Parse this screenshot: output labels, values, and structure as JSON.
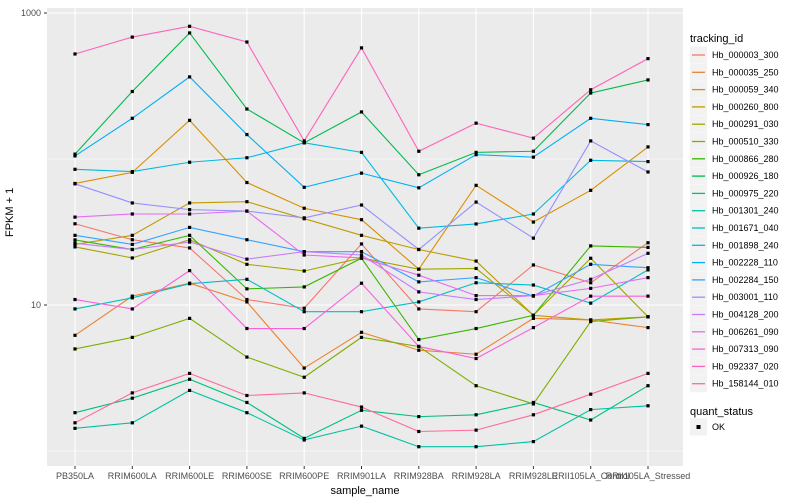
{
  "figure": {
    "y_title": "FPKM + 1",
    "x_title": "sample_name",
    "panel_bg": "#EBEBEB",
    "grid_color": "#FFFFFF",
    "tick_label_color": "#4D4D4D",
    "legend": {
      "tracking_title": "tracking_id",
      "quant_title": "quant_status",
      "quant_ok_label": "OK",
      "key_bg": "#F2F2F2",
      "point_color": "#000000"
    },
    "y_ticks": [
      {
        "label": "1000",
        "value": 1000
      },
      {
        "label": "10",
        "value": 10
      }
    ]
  },
  "chart_data": {
    "type": "line",
    "title": "",
    "xlabel": "sample_name",
    "ylabel": "FPKM + 1",
    "y_scale": "log10",
    "ylim": [
      0.8,
      1100
    ],
    "y_major_breaks": [
      10,
      1000
    ],
    "y_minor_breaks": [
      1,
      100
    ],
    "grid": true,
    "legend_position": "right",
    "point_shape": "black-square",
    "categories": [
      "PB350LA",
      "RRIM600LA",
      "RRIM600LE",
      "RRIM600SE",
      "RRIM600PE",
      "RRIM901LA",
      "RRIM928BA",
      "RRIM928LA",
      "RRIM928LE",
      "RRII105LA_Control",
      "RRII105LA_Stressed"
    ],
    "series": [
      {
        "name": "Hb_000003_300",
        "color": "#F8766D",
        "values": [
          36,
          28,
          24.6,
          10.9,
          9.5,
          26.2,
          9.4,
          9.0,
          18.8,
          14.2,
          26.7
        ]
      },
      {
        "name": "Hb_000035_250",
        "color": "#EA8331",
        "values": [
          6.2,
          11.5,
          14.1,
          10.5,
          3.7,
          6.5,
          4.9,
          4.6,
          8.1,
          7.9,
          7.0
        ]
      },
      {
        "name": "Hb_000059_340",
        "color": "#D89000",
        "values": [
          68,
          81,
          184,
          69,
          46,
          38.4,
          17.6,
          66,
          37,
          61,
          121
        ]
      },
      {
        "name": "Hb_000260_800",
        "color": "#C09B00",
        "values": [
          26,
          30,
          50,
          51,
          39,
          30,
          24,
          20,
          8.5,
          7.9,
          8.3
        ]
      },
      {
        "name": "Hb_000291_030",
        "color": "#A3A500",
        "values": [
          25,
          21,
          28,
          19,
          17.1,
          21,
          17.6,
          17.8,
          8.5,
          20.9,
          8.3
        ]
      },
      {
        "name": "Hb_000510_330",
        "color": "#7CAE00",
        "values": [
          5.0,
          6.0,
          8.1,
          4.4,
          3.2,
          6.0,
          5.2,
          2.8,
          2.1,
          7.7,
          8.3
        ]
      },
      {
        "name": "Hb_000866_280",
        "color": "#39B600",
        "values": [
          27.9,
          24,
          30,
          12.9,
          13.3,
          20.9,
          5.8,
          6.9,
          8.5,
          25.4,
          24.8
        ]
      },
      {
        "name": "Hb_000926_180",
        "color": "#00BB4E",
        "values": [
          108,
          290,
          730,
          220,
          129,
          210,
          78,
          111,
          113,
          283,
          348
        ]
      },
      {
        "name": "Hb_000975_220",
        "color": "#00BF7D",
        "values": [
          1.83,
          2.3,
          3.1,
          2.15,
          1.22,
          1.9,
          1.72,
          1.77,
          2.15,
          1.63,
          2.8
        ]
      },
      {
        "name": "Hb_001301_240",
        "color": "#00C1A3",
        "values": [
          1.43,
          1.56,
          2.6,
          1.83,
          1.19,
          1.48,
          1.07,
          1.07,
          1.16,
          1.92,
          2.04
        ]
      },
      {
        "name": "Hb_001671_040",
        "color": "#00BFC4",
        "values": [
          9.4,
          11.2,
          14,
          15,
          9.0,
          9.0,
          10.5,
          14.2,
          13.7,
          10.3,
          17.4
        ]
      },
      {
        "name": "Hb_001898_240",
        "color": "#00BAE0",
        "values": [
          85,
          82,
          95,
          102,
          129,
          111,
          33.6,
          35.9,
          42,
          98,
          96
        ]
      },
      {
        "name": "Hb_002228_110",
        "color": "#00B0F6",
        "values": [
          105,
          190,
          365,
          147,
          64,
          80,
          63.5,
          107,
          103,
          190,
          172
        ]
      },
      {
        "name": "Hb_002284_150",
        "color": "#35A2FF",
        "values": [
          30,
          26,
          34,
          28,
          23.2,
          23.2,
          14.4,
          15.4,
          11.5,
          19,
          18
        ]
      },
      {
        "name": "Hb_003001_110",
        "color": "#9590FF",
        "values": [
          67.6,
          50,
          45,
          44,
          39.5,
          48.4,
          24,
          50.7,
          28.7,
          133,
          81.5
        ]
      },
      {
        "name": "Hb_004128_200",
        "color": "#C77CFF",
        "values": [
          26.5,
          24,
          27,
          20.6,
          23.2,
          22,
          12.3,
          10.9,
          11.6,
          15,
          22.6
        ]
      },
      {
        "name": "Hb_006261_090",
        "color": "#E76BF3",
        "values": [
          40,
          42,
          42,
          44,
          22,
          21,
          16,
          11.6,
          11.6,
          13,
          15.4
        ]
      },
      {
        "name": "Hb_007313_090",
        "color": "#FA62DB",
        "values": [
          10.9,
          9.4,
          17.2,
          6.9,
          6.9,
          14.1,
          5.2,
          4.3,
          7.0,
          11.5,
          11.5
        ]
      },
      {
        "name": "Hb_092337_020",
        "color": "#FF62BC",
        "values": [
          524,
          684,
          811,
          633,
          133,
          577,
          113,
          176,
          139,
          298,
          487
        ]
      },
      {
        "name": "Hb_158144_010",
        "color": "#FF6A98",
        "values": [
          1.56,
          2.5,
          3.4,
          2.4,
          2.5,
          2.0,
          1.36,
          1.39,
          1.77,
          2.45,
          3.4
        ]
      }
    ]
  }
}
